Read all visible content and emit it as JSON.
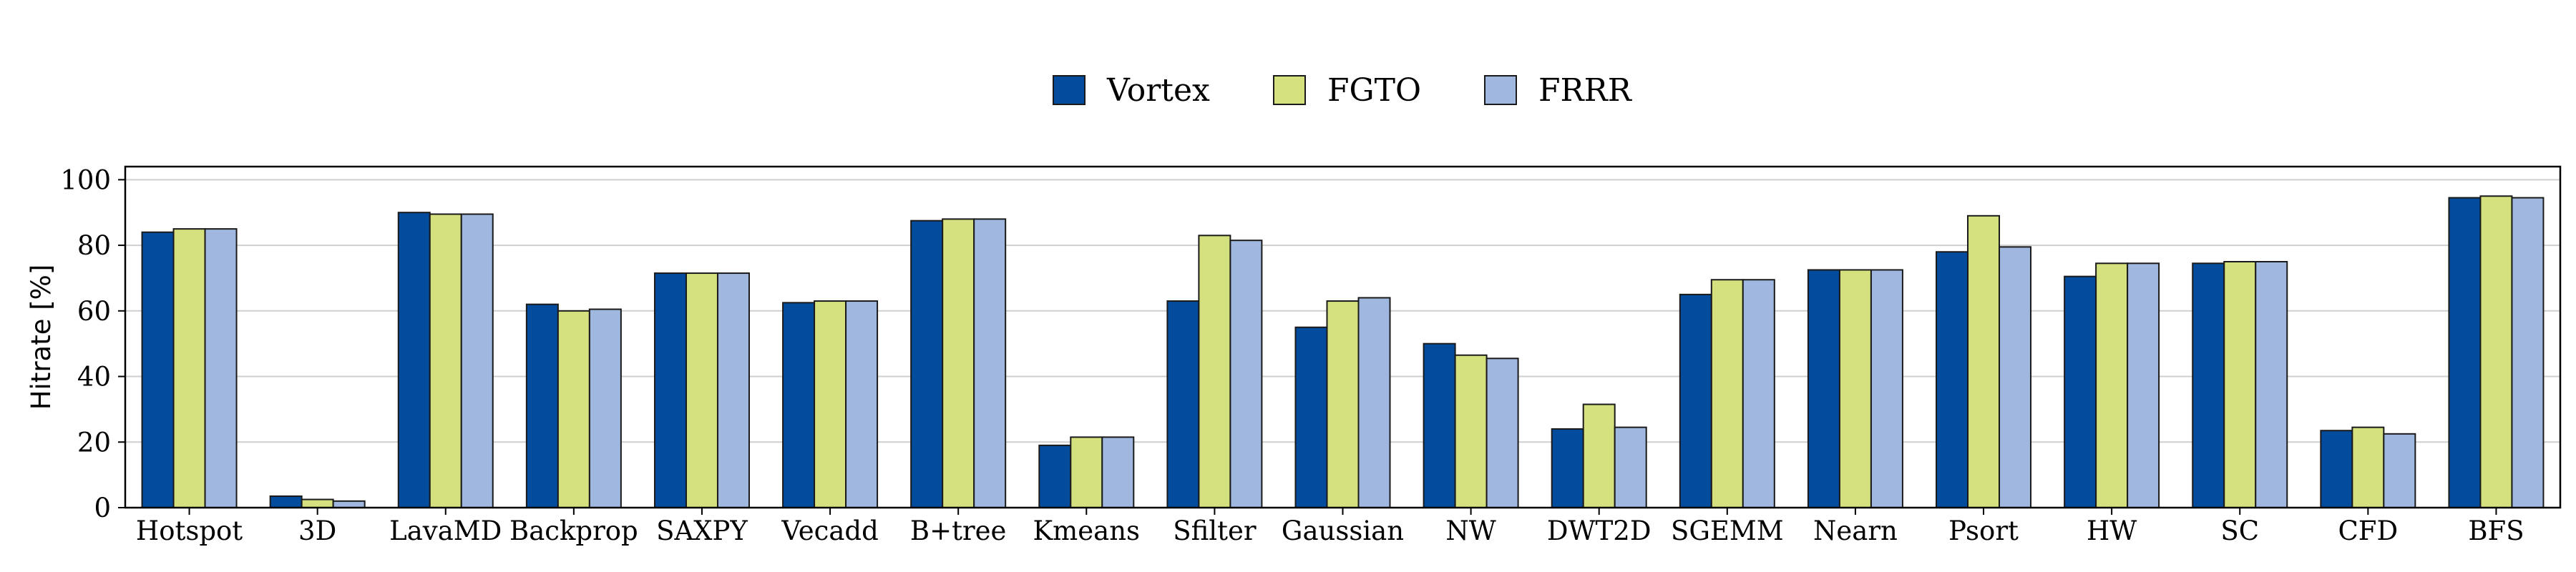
{
  "chart_data": {
    "type": "bar",
    "ylabel": "Hitrate [%]",
    "xlabel": "",
    "ylim": [
      0,
      104
    ],
    "yticks": [
      0,
      20,
      40,
      60,
      80,
      100
    ],
    "grid": "horizontal",
    "legend_position": "top-center",
    "categories": [
      "Hotspot",
      "3D",
      "LavaMD",
      "Backprop",
      "SAXPY",
      "Vecadd",
      "B+tree",
      "Kmeans",
      "Sfilter",
      "Gaussian",
      "NW",
      "DWT2D",
      "SGEMM",
      "Nearn",
      "Psort",
      "HW",
      "SC",
      "CFD",
      "BFS"
    ],
    "series": [
      {
        "name": "Vortex",
        "color": "#034C9D",
        "values": [
          84,
          3.5,
          90,
          62,
          71.5,
          62.5,
          87.5,
          19,
          63,
          55,
          50,
          24,
          65,
          72.5,
          78,
          70.5,
          74.5,
          23.5,
          94.5
        ]
      },
      {
        "name": "FGTO",
        "color": "#D5E17F",
        "values": [
          85,
          2.5,
          89.5,
          60,
          71.5,
          63,
          88,
          21.5,
          83,
          63,
          46.5,
          31.5,
          69.5,
          72.5,
          89,
          74.5,
          75,
          24.5,
          95
        ]
      },
      {
        "name": "FRRR",
        "color": "#A0B8E0",
        "values": [
          85,
          2,
          89.5,
          60.5,
          71.5,
          63,
          88,
          21.5,
          81.5,
          64,
          45.5,
          24.5,
          69.5,
          72.5,
          79.5,
          74.5,
          75,
          22.5,
          94.5
        ]
      }
    ]
  }
}
